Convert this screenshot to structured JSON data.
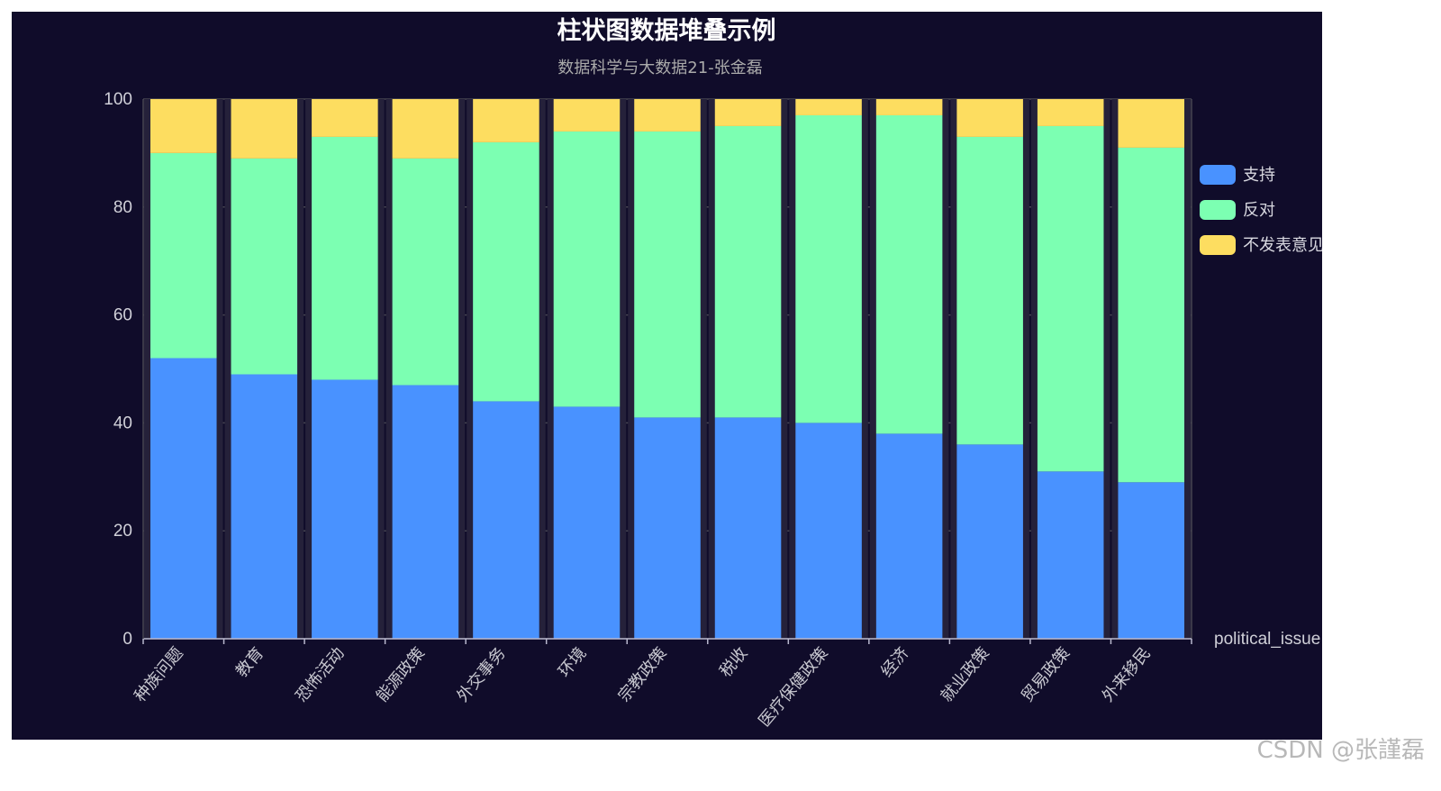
{
  "chart_data": {
    "type": "bar",
    "stacked": true,
    "title": "柱状图数据堆叠示例",
    "subtitle": "数据科学与大数据21-张金磊",
    "xlabel": "political_issue",
    "ylabel": "",
    "ylim": [
      0,
      100
    ],
    "yticks": [
      0,
      20,
      40,
      60,
      80,
      100
    ],
    "grid": true,
    "legend_position": "right",
    "categories": [
      "种族问题",
      "教育",
      "恐怖活动",
      "能源政策",
      "外交事务",
      "环境",
      "宗教政策",
      "税收",
      "医疗保健政策",
      "经济",
      "就业政策",
      "贸易政策",
      "外来移民"
    ],
    "series": [
      {
        "name": "支持",
        "color": "#4992ff",
        "values": [
          52,
          49,
          48,
          47,
          44,
          43,
          41,
          41,
          40,
          38,
          36,
          31,
          29
        ]
      },
      {
        "name": "反对",
        "color": "#7cffb2",
        "values": [
          38,
          40,
          45,
          42,
          48,
          51,
          53,
          54,
          57,
          59,
          57,
          64,
          62
        ]
      },
      {
        "name": "不发表意见",
        "color": "#fddd60",
        "values": [
          10,
          11,
          7,
          11,
          8,
          6,
          6,
          5,
          3,
          3,
          7,
          5,
          9
        ]
      }
    ]
  },
  "colors": {
    "background": "#100c2a",
    "gridline": "#484753",
    "axis": "#b9b8ce",
    "bar_gap": "#25213a"
  },
  "watermark": "CSDN @张謹磊"
}
